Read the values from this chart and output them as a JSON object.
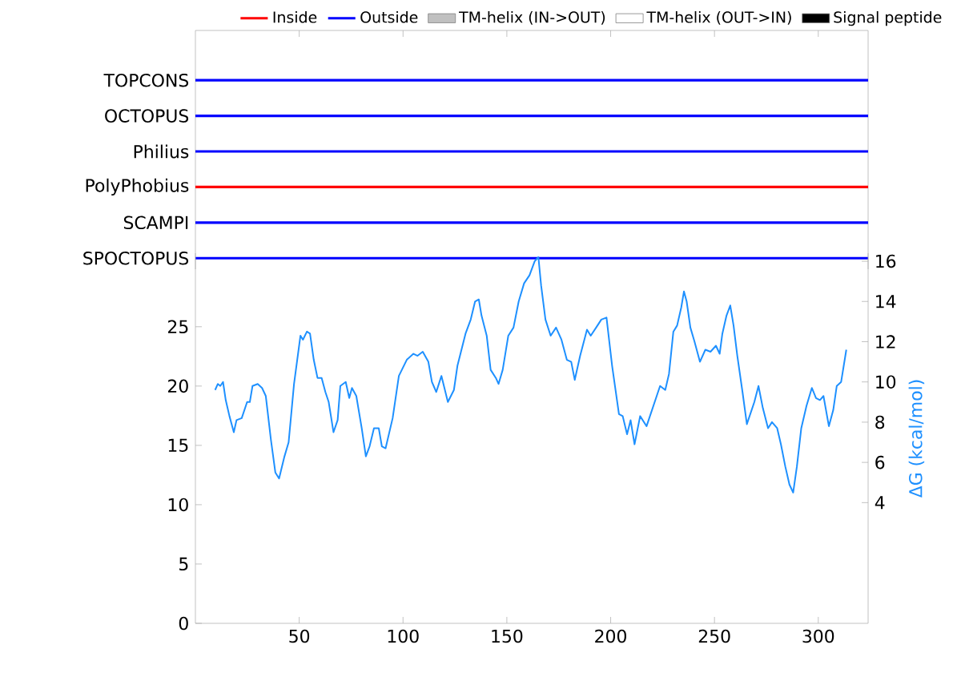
{
  "chart_data": [
    {
      "type": "bar",
      "orientation": "horizontal",
      "stacked": true,
      "categories": [
        "TOPCONS",
        "OCTOPUS",
        "Philius",
        "PolyPhobius",
        "SCAMPI",
        "SPOCTOPUS"
      ],
      "xlim": [
        0,
        324
      ],
      "xticks": [
        {
          "value": 50,
          "label": null
        },
        {
          "value": 100,
          "label": null
        },
        {
          "value": 150,
          "label": null
        },
        {
          "value": 200,
          "label": null
        },
        {
          "value": 250,
          "label": null
        },
        {
          "value": 300,
          "label": null
        }
      ],
      "tick_labels": "y",
      "legend": "top",
      "series": [
        {
          "name": "Inside",
          "color": "#ff0000",
          "values": [
            null,
            null,
            null,
            324,
            null,
            null
          ]
        },
        {
          "name": "Outside",
          "color": "#0000ff",
          "values": [
            324,
            324,
            324,
            null,
            324,
            324
          ]
        },
        {
          "name": "TM-helix (IN->OUT)",
          "color": "#c0c0c0",
          "values": [
            null,
            null,
            null,
            null,
            null,
            null
          ]
        },
        {
          "name": "TM-helix (OUT->IN)",
          "color": "#ffffff",
          "values": [
            null,
            null,
            null,
            null,
            null,
            null
          ]
        },
        {
          "name": "Signal peptide",
          "color": "#000000",
          "values": [
            null,
            null,
            null,
            null,
            null,
            null
          ]
        }
      ]
    },
    {
      "type": "line",
      "y2label": "ΔG (kcal/mol)",
      "xlim": [
        0,
        324
      ],
      "xticks": [
        50,
        100,
        150,
        200,
        250,
        300
      ],
      "ylim": [
        0,
        31.2
      ],
      "yticks": [
        0,
        5,
        10,
        15,
        20,
        25
      ],
      "y2lim": [
        -2.0,
        16.4
      ],
      "y2ticks": [
        4,
        6,
        8,
        10,
        12,
        14,
        16
      ],
      "series": [
        {
          "axis": "y2",
          "color": "#1e90ff",
          "x": [
            9.5,
            10.8,
            12,
            13.3,
            14.6,
            16.4,
            18.5,
            19.8,
            22.3,
            24.9,
            26.2,
            27.5,
            30,
            32.1,
            33.9,
            36.4,
            38.5,
            40.3,
            42.9,
            44.9,
            47.5,
            50.6,
            51.8,
            53.7,
            55.2,
            57,
            58.8,
            60.8,
            62.6,
            64.2,
            66.5,
            68.5,
            69.8,
            72.4,
            74.1,
            75.4,
            77.5,
            80.1,
            82.1,
            83.9,
            86,
            88.3,
            89.8,
            91.6,
            95,
            98,
            101.8,
            105,
            107,
            109.5,
            112.2,
            113.9,
            116,
            118.5,
            121.6,
            124.5,
            126.2,
            130.1,
            132.6,
            134.7,
            136.5,
            137.8,
            140.3,
            142.2,
            144.7,
            146,
            148,
            150.7,
            153.2,
            155.7,
            158.3,
            160.9,
            163.4,
            165.2,
            166.5,
            168.6,
            171.1,
            173.7,
            176.3,
            178.9,
            181,
            182.7,
            185.3,
            188.6,
            190.4,
            193,
            195.5,
            198,
            200.7,
            204,
            205.8,
            207.9,
            209.6,
            211.5,
            214.2,
            217.3,
            219.9,
            222.5,
            223.8,
            226.3,
            228.1,
            230.2,
            232,
            234,
            235.3,
            236.6,
            238.4,
            240.4,
            243,
            245.6,
            248.1,
            250.7,
            252.5,
            253.8,
            255.8,
            257.6,
            259.2,
            261,
            263.5,
            265.6,
            269.2,
            271.2,
            273.3,
            275.8,
            277.7,
            280.2,
            282,
            284.1,
            286.1,
            287.9,
            289.7,
            291.8,
            294.3,
            296.9,
            298.9,
            300.8,
            302.5,
            305.1,
            307.2,
            308.9,
            311,
            313.5
          ],
          "values": [
            9.6,
            9.9,
            9.8,
            10.0,
            9.1,
            8.3,
            7.5,
            8.1,
            8.2,
            9.0,
            9.0,
            9.8,
            9.9,
            9.7,
            9.3,
            7.1,
            5.5,
            5.2,
            6.3,
            7.0,
            9.9,
            12.3,
            12.1,
            12.5,
            12.4,
            11.1,
            10.2,
            10.2,
            9.5,
            9.0,
            7.5,
            8.1,
            9.8,
            10.0,
            9.2,
            9.7,
            9.3,
            7.7,
            6.3,
            6.8,
            7.7,
            7.7,
            6.8,
            6.7,
            8.2,
            10.3,
            11.1,
            11.4,
            11.3,
            11.5,
            11.0,
            10.0,
            9.5,
            10.3,
            9.0,
            9.6,
            10.8,
            12.4,
            13.1,
            14.0,
            14.1,
            13.3,
            12.3,
            10.6,
            10.2,
            9.9,
            10.6,
            12.3,
            12.7,
            14.0,
            14.9,
            15.3,
            16.0,
            16.2,
            14.8,
            13.1,
            12.3,
            12.7,
            12.1,
            11.1,
            11.0,
            10.1,
            11.3,
            12.6,
            12.3,
            12.7,
            13.1,
            13.2,
            10.8,
            8.4,
            8.3,
            7.4,
            8.1,
            6.9,
            8.3,
            7.8,
            8.6,
            9.4,
            9.8,
            9.6,
            10.4,
            12.5,
            12.8,
            13.7,
            14.5,
            14.0,
            12.7,
            12.0,
            11.0,
            11.6,
            11.5,
            11.8,
            11.4,
            12.4,
            13.3,
            13.8,
            12.8,
            11.3,
            9.5,
            7.9,
            9.0,
            9.8,
            8.7,
            7.7,
            8.0,
            7.7,
            6.9,
            5.8,
            4.9,
            4.5,
            5.8,
            7.7,
            8.8,
            9.7,
            9.2,
            9.1,
            9.3,
            7.8,
            8.6,
            9.8,
            10.0,
            11.6
          ]
        }
      ]
    }
  ]
}
